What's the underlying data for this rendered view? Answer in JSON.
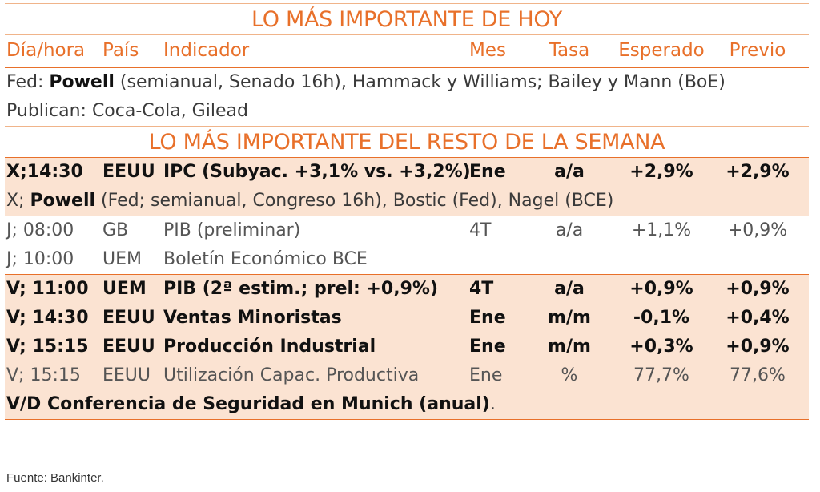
{
  "title_today": "LO MÁS IMPORTANTE DE HOY",
  "title_week": "LO MÁS IMPORTANTE DEL RESTO DE LA SEMANA",
  "headers": {
    "dia": "Día/hora",
    "pais": "País",
    "indicador": "Indicador",
    "mes": "Mes",
    "tasa": "Tasa",
    "esperado": "Esperado",
    "previo": "Previo"
  },
  "today": {
    "line1_prefix": "Fed: ",
    "line1_bold": "Powell",
    "line1_rest": " (semianual, Senado 16h), Hammack y Williams; Bailey y Mann (BoE)",
    "line2": "Publican: Coca-Cola, Gilead"
  },
  "week_rows": [
    {
      "dia": "X;14:30",
      "pais": "EEUU",
      "indicador": "IPC (Subyac. +3,1% vs. +3,2%)",
      "mes": "Ene",
      "tasa": "a/a",
      "esperado": "+2,9%",
      "previo": "+2,9%"
    },
    {
      "dia": "J; 08:00",
      "pais": "GB",
      "indicador": "PIB (preliminar)",
      "mes": "4T",
      "tasa": "a/a",
      "esperado": "+1,1%",
      "previo": "+0,9%"
    },
    {
      "dia": "J; 10:00",
      "pais": "UEM",
      "indicador": "Boletín Económico BCE",
      "mes": "",
      "tasa": "",
      "esperado": "",
      "previo": ""
    },
    {
      "dia": "V; 11:00",
      "pais": "UEM",
      "indicador": "PIB (2ª estim.; prel: +0,9%)",
      "mes": "4T",
      "tasa": "a/a",
      "esperado": "+0,9%",
      "previo": "+0,9%"
    },
    {
      "dia": "V; 14:30",
      "pais": "EEUU",
      "indicador": "Ventas Minoristas",
      "mes": "Ene",
      "tasa": "m/m",
      "esperado": "-0,1%",
      "previo": "+0,4%"
    },
    {
      "dia": "V; 15:15",
      "pais": "EEUU",
      "indicador": "Producción Industrial",
      "mes": "Ene",
      "tasa": "m/m",
      "esperado": "+0,3%",
      "previo": "+0,9%"
    },
    {
      "dia": "V; 15:15",
      "pais": "EEUU",
      "indicador": "Utilización Capac. Productiva",
      "mes": "Ene",
      "tasa": "%",
      "esperado": "77,7%",
      "previo": "77,6%"
    }
  ],
  "powell_week": {
    "prefix": "X; ",
    "bold": "Powell",
    "rest": " (Fed; semianual, Congreso 16h), Bostic (Fed), Nagel (BCE)"
  },
  "munich": {
    "bold": "V/D Conferencia de Seguridad en Munich (anual)",
    "rest": "."
  },
  "source": "Fuente: Bankinter."
}
